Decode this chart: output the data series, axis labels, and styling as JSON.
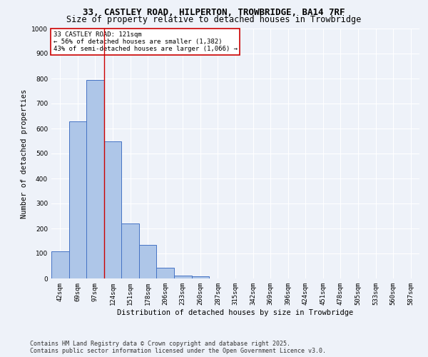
{
  "title_line1": "33, CASTLEY ROAD, HILPERTON, TROWBRIDGE, BA14 7RF",
  "title_line2": "Size of property relative to detached houses in Trowbridge",
  "xlabel": "Distribution of detached houses by size in Trowbridge",
  "ylabel": "Number of detached properties",
  "bar_labels": [
    "42sqm",
    "69sqm",
    "97sqm",
    "124sqm",
    "151sqm",
    "178sqm",
    "206sqm",
    "233sqm",
    "260sqm",
    "287sqm",
    "315sqm",
    "342sqm",
    "369sqm",
    "396sqm",
    "424sqm",
    "451sqm",
    "478sqm",
    "505sqm",
    "533sqm",
    "560sqm",
    "587sqm"
  ],
  "bar_values": [
    108,
    630,
    795,
    548,
    220,
    135,
    43,
    12,
    8,
    0,
    0,
    0,
    0,
    0,
    0,
    0,
    0,
    0,
    0,
    0,
    0
  ],
  "bar_color": "#aec6e8",
  "bar_edge_color": "#4472c4",
  "ylim": [
    0,
    1000
  ],
  "yticks": [
    0,
    100,
    200,
    300,
    400,
    500,
    600,
    700,
    800,
    900,
    1000
  ],
  "annotation_title": "33 CASTLEY ROAD: 121sqm",
  "annotation_line1": "← 56% of detached houses are smaller (1,382)",
  "annotation_line2": "43% of semi-detached houses are larger (1,066) →",
  "annotation_box_color": "#ffffff",
  "annotation_box_edge_color": "#cc0000",
  "property_line_color": "#cc0000",
  "footnote_line1": "Contains HM Land Registry data © Crown copyright and database right 2025.",
  "footnote_line2": "Contains public sector information licensed under the Open Government Licence v3.0.",
  "background_color": "#eef2f9",
  "grid_color": "#ffffff",
  "title_fontsize": 9,
  "subtitle_fontsize": 8.5,
  "axis_label_fontsize": 7.5,
  "tick_fontsize": 6.5,
  "annotation_fontsize": 6.5,
  "footnote_fontsize": 6.0
}
